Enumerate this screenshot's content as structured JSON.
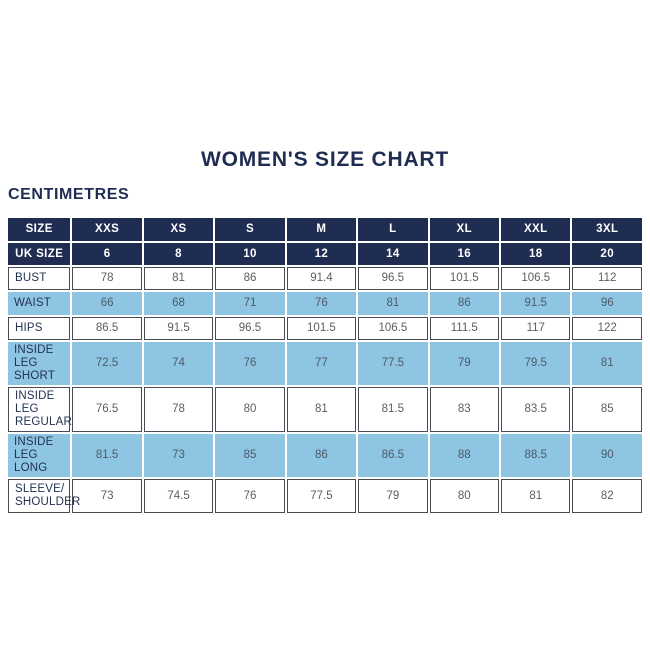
{
  "page": {
    "title": "WOMEN'S SIZE CHART",
    "unit_label": "CENTIMETRES"
  },
  "colors": {
    "navy_header": "#1f2d53",
    "light_blue_row": "#8dc5e3",
    "cell_border": "#4a4c55",
    "value_text": "#5b5e63",
    "label_text": "#233252"
  },
  "chart_data": {
    "type": "table",
    "title": "WOMEN'S SIZE CHART",
    "unit": "CENTIMETRES",
    "header_rows": [
      {
        "label": "SIZE",
        "values": [
          "XXS",
          "XS",
          "S",
          "M",
          "L",
          "XL",
          "XXL",
          "3XL"
        ]
      },
      {
        "label": "UK SIZE",
        "values": [
          "6",
          "8",
          "10",
          "12",
          "14",
          "16",
          "18",
          "20"
        ]
      }
    ],
    "rows": [
      {
        "label": "BUST",
        "shaded": false,
        "tall": false,
        "values": [
          "78",
          "81",
          "86",
          "91.4",
          "96.5",
          "101.5",
          "106.5",
          "112"
        ]
      },
      {
        "label": "WAIST",
        "shaded": true,
        "tall": false,
        "values": [
          "66",
          "68",
          "71",
          "76",
          "81",
          "86",
          "91.5",
          "96"
        ]
      },
      {
        "label": "HIPS",
        "shaded": false,
        "tall": false,
        "values": [
          "86.5",
          "91.5",
          "96.5",
          "101.5",
          "106.5",
          "111.5",
          "117",
          "122"
        ]
      },
      {
        "label": "INSIDE LEG SHORT",
        "shaded": true,
        "tall": true,
        "values": [
          "72.5",
          "74",
          "76",
          "77",
          "77.5",
          "79",
          "79.5",
          "81"
        ]
      },
      {
        "label": "INSIDE LEG REGULAR",
        "shaded": false,
        "tall": true,
        "values": [
          "76.5",
          "78",
          "80",
          "81",
          "81.5",
          "83",
          "83.5",
          "85"
        ]
      },
      {
        "label": "INSIDE LEG LONG",
        "shaded": true,
        "tall": true,
        "values": [
          "81.5",
          "73",
          "85",
          "86",
          "86.5",
          "88",
          "88.5",
          "90"
        ]
      },
      {
        "label": "SLEEVE/ SHOULDER",
        "shaded": false,
        "tall": true,
        "values": [
          "73",
          "74.5",
          "76",
          "77.5",
          "79",
          "80",
          "81",
          "82"
        ]
      }
    ]
  }
}
